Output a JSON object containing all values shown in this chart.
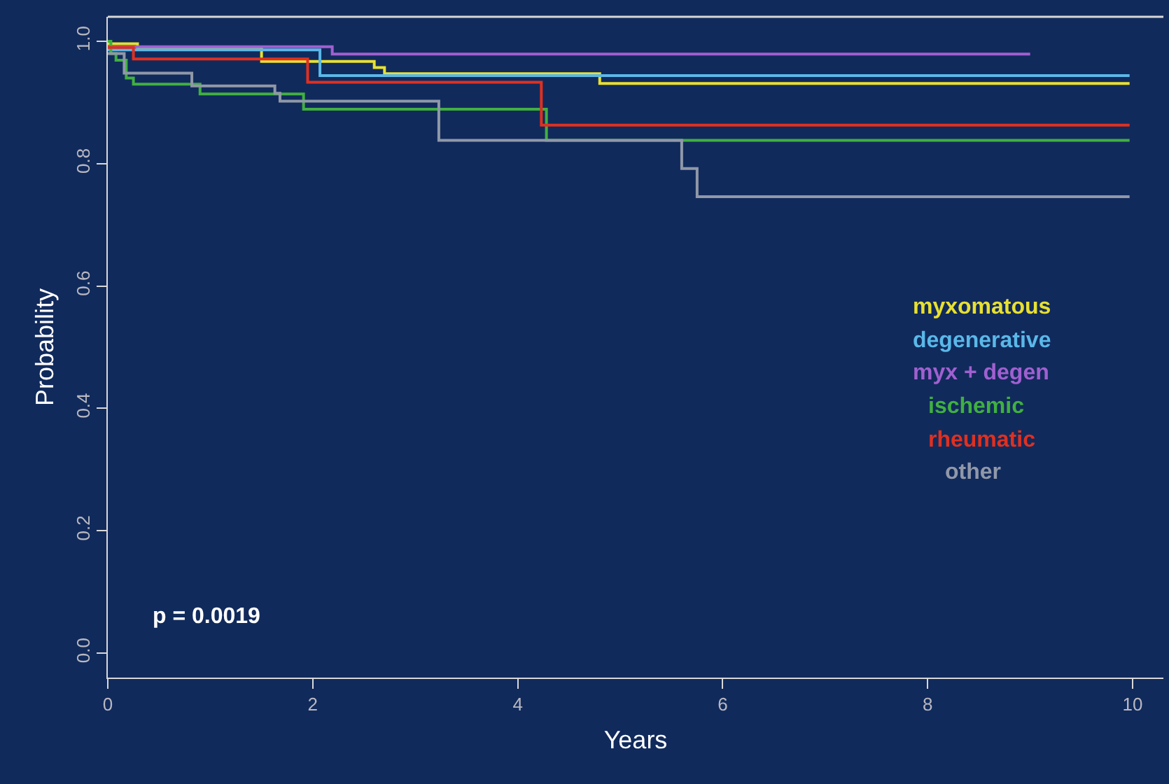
{
  "chart_data": {
    "type": "step",
    "xlabel": "Years",
    "ylabel": "Probability",
    "xlim": [
      0,
      10.3
    ],
    "xticks": [
      0,
      2,
      4,
      6,
      8,
      10
    ],
    "ylim": [
      -0.04,
      1.04
    ],
    "yticks": [
      {
        "value": 0,
        "label": "0.0"
      },
      0.2,
      0.4,
      0.6,
      0.8,
      {
        "value": 1,
        "label": "1.0"
      }
    ],
    "legend": "right",
    "marker": "none",
    "line_style": "solid",
    "annotations": [
      "p = 0.0019"
    ],
    "series": [
      {
        "name": "myxomatous",
        "color": "#e8e030",
        "x": [
          0,
          0.29,
          1.5,
          2.6,
          2.7,
          4.8,
          9.97
        ],
        "values": [
          0.996,
          0.99,
          0.967,
          0.957,
          0.947,
          0.931,
          0.931
        ]
      },
      {
        "name": "degenerative",
        "color": "#5ab8e8",
        "x": [
          0,
          2.07,
          9.97
        ],
        "values": [
          0.986,
          0.944,
          0.944
        ]
      },
      {
        "name": "myx + degen",
        "color": "#a060d0",
        "x": [
          0,
          2.19,
          9.0
        ],
        "values": [
          0.991,
          0.979,
          0.979
        ]
      },
      {
        "name": "ischemic",
        "color": "#40b040",
        "x": [
          0,
          0.03,
          0.08,
          0.18,
          0.25,
          0.9,
          1.91,
          4.28,
          9.97
        ],
        "values": [
          1.0,
          0.98,
          0.969,
          0.94,
          0.93,
          0.914,
          0.889,
          0.838,
          0.838
        ]
      },
      {
        "name": "rheumatic",
        "color": "#e03020",
        "x": [
          0,
          0.25,
          1.95,
          4.23,
          9.97
        ],
        "values": [
          0.99,
          0.971,
          0.933,
          0.863,
          0.863
        ]
      },
      {
        "name": "other",
        "color": "#9098a8",
        "x": [
          0,
          0.16,
          0.82,
          1.63,
          1.68,
          3.23,
          5.6,
          5.75,
          9.97
        ],
        "values": [
          0.98,
          0.948,
          0.927,
          0.915,
          0.902,
          0.838,
          0.792,
          0.746,
          0.746
        ]
      }
    ]
  }
}
